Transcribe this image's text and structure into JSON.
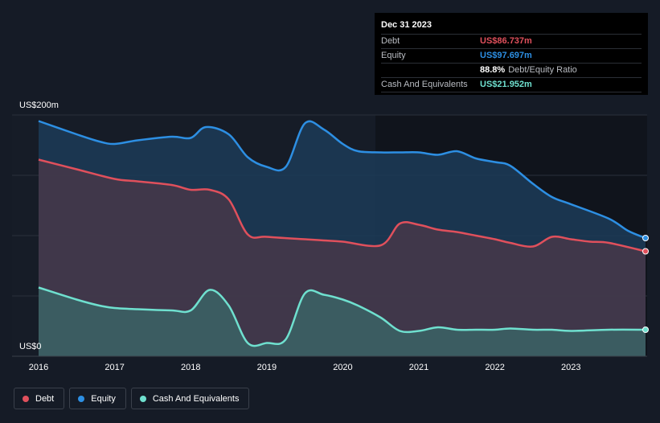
{
  "tooltip": {
    "date": "Dec 31 2023",
    "debt_label": "Debt",
    "debt_value": "US$86.737m",
    "equity_label": "Equity",
    "equity_value": "US$97.697m",
    "ratio_value": "88.8%",
    "ratio_label": "Debt/Equity Ratio",
    "cash_label": "Cash And Equivalents",
    "cash_value": "US$21.952m"
  },
  "colors": {
    "debt": "#e0505c",
    "equity": "#2d8fe3",
    "cash": "#6fe0cf",
    "background": "#151b26"
  },
  "chart_data": {
    "type": "area",
    "title": "",
    "y_top_label": "US$200m",
    "y_bottom_label": "US$0",
    "ylim": [
      0,
      200
    ],
    "xlim": [
      2016,
      2023.98
    ],
    "x_ticks": [
      "2016",
      "2017",
      "2018",
      "2019",
      "2020",
      "2021",
      "2022",
      "2023"
    ],
    "series": [
      {
        "name": "Equity",
        "x": [
          2016.0,
          2016.5,
          2016.8,
          2017.0,
          2017.3,
          2017.75,
          2018.0,
          2018.2,
          2018.5,
          2018.75,
          2019.0,
          2019.25,
          2019.5,
          2019.75,
          2020.0,
          2020.2,
          2020.5,
          2020.75,
          2021.0,
          2021.25,
          2021.5,
          2021.75,
          2022.0,
          2022.2,
          2022.5,
          2022.75,
          2023.0,
          2023.5,
          2023.75,
          2023.98
        ],
        "values": [
          195,
          184,
          178,
          176,
          179,
          182,
          181,
          190,
          184,
          165,
          157,
          157,
          193,
          188,
          176,
          170,
          169,
          169,
          169,
          167,
          170,
          164,
          161,
          158,
          143,
          132,
          126,
          114,
          104,
          98
        ]
      },
      {
        "name": "Debt",
        "x": [
          2016.0,
          2016.5,
          2017.0,
          2017.3,
          2017.75,
          2018.0,
          2018.25,
          2018.5,
          2018.75,
          2019.0,
          2019.5,
          2019.75,
          2020.0,
          2020.5,
          2020.75,
          2021.0,
          2021.25,
          2021.5,
          2021.75,
          2022.0,
          2022.2,
          2022.5,
          2022.75,
          2023.0,
          2023.25,
          2023.5,
          2023.98
        ],
        "values": [
          163,
          155,
          147,
          145,
          142,
          138,
          138,
          130,
          101,
          99,
          97,
          96,
          95,
          92,
          110,
          109,
          105,
          103,
          100,
          97,
          94,
          91,
          99,
          97,
          95,
          94,
          87
        ]
      },
      {
        "name": "Cash And Equivalents",
        "x": [
          2016.0,
          2016.5,
          2016.8,
          2017.0,
          2017.3,
          2017.75,
          2018.0,
          2018.25,
          2018.5,
          2018.75,
          2019.0,
          2019.25,
          2019.5,
          2019.75,
          2020.0,
          2020.2,
          2020.5,
          2020.75,
          2021.0,
          2021.25,
          2021.5,
          2021.75,
          2022.0,
          2022.2,
          2022.5,
          2022.75,
          2023.0,
          2023.5,
          2023.98
        ],
        "values": [
          57,
          47,
          42,
          40,
          39,
          38,
          38,
          55,
          42,
          11,
          11,
          14,
          52,
          51,
          47,
          42,
          32,
          21,
          21,
          24,
          22,
          22,
          22,
          23,
          22,
          22,
          21,
          22,
          22
        ]
      }
    ]
  },
  "legend": {
    "debt": "Debt",
    "equity": "Equity",
    "cash": "Cash And Equivalents"
  }
}
